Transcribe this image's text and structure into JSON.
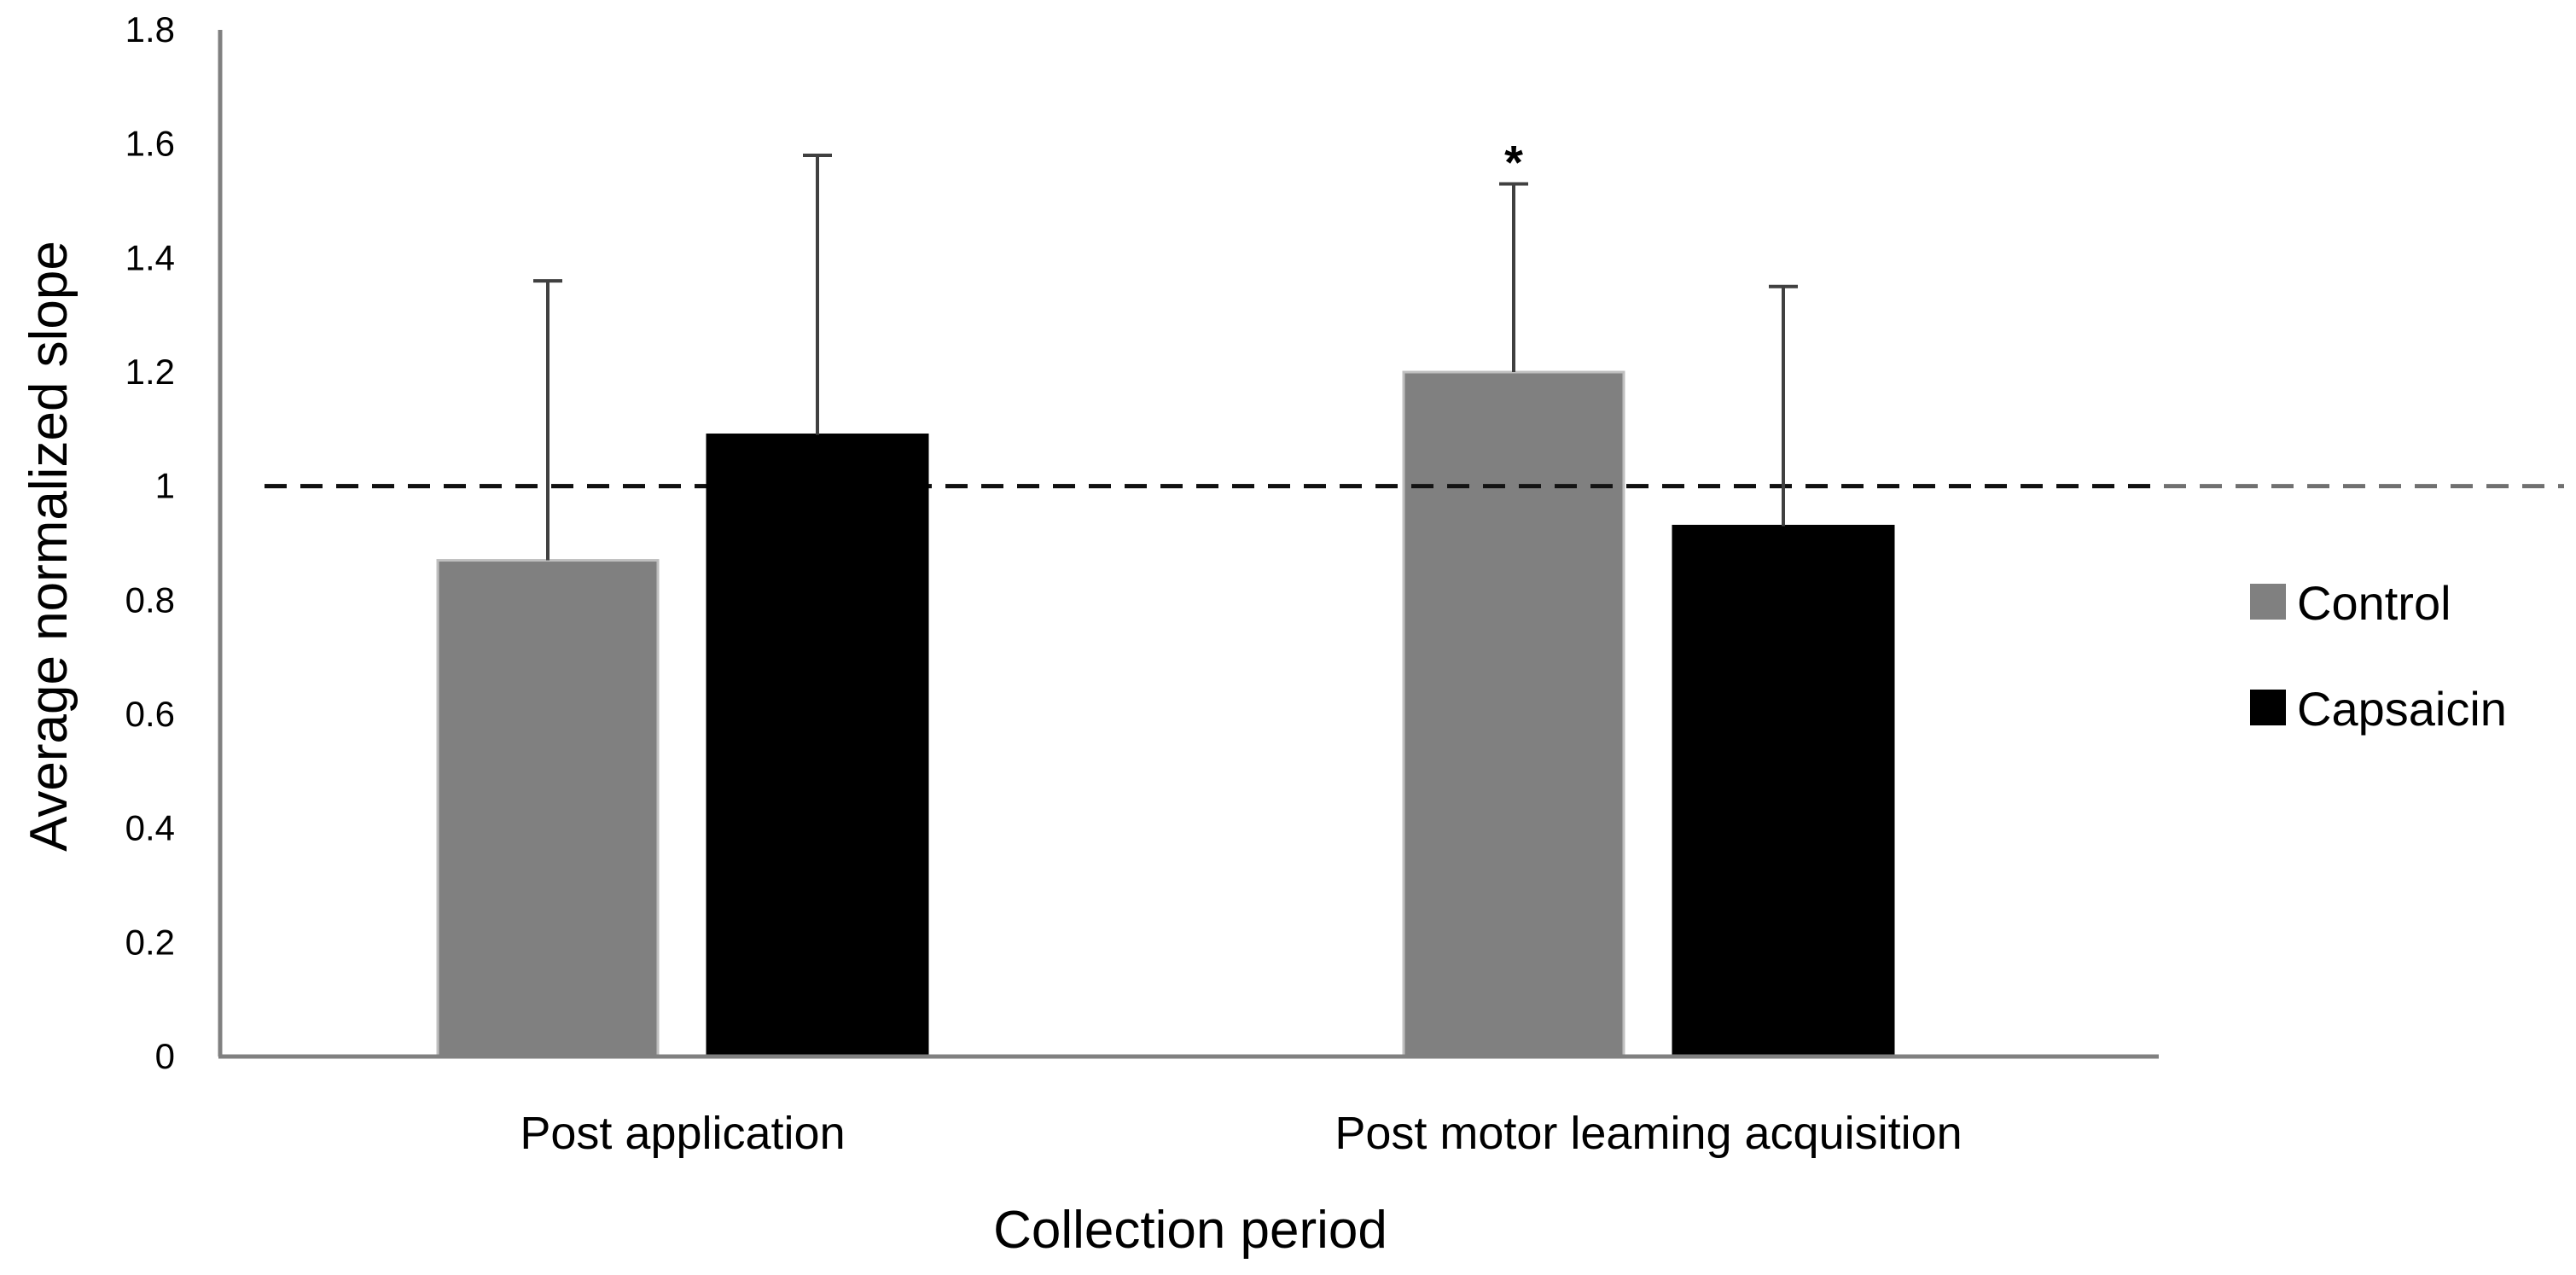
{
  "chart_data": {
    "type": "bar",
    "xlabel": "Collection period",
    "ylabel": "Average normalized slope",
    "categories": [
      "Post application",
      "Post motor leaming acquisition"
    ],
    "series": [
      {
        "name": "Control",
        "color": "#808080",
        "values": [
          0.87,
          1.2
        ],
        "errors": [
          0.49,
          0.33
        ]
      },
      {
        "name": "Capsaicin",
        "color": "#000000",
        "values": [
          1.09,
          0.93
        ],
        "errors": [
          0.49,
          0.42
        ]
      }
    ],
    "ylim": [
      0,
      1.8
    ],
    "yticks": [
      "0",
      "0.2",
      "0.4",
      "0.6",
      "0.8",
      "1",
      "1.2",
      "1.4",
      "1.6",
      "1.8"
    ],
    "reference_line": {
      "value": 1,
      "style": "dashed"
    },
    "annotations": [
      {
        "text": "*",
        "category_index": 1,
        "series_index": 0
      }
    ],
    "grid": false,
    "legend_position": "right"
  }
}
